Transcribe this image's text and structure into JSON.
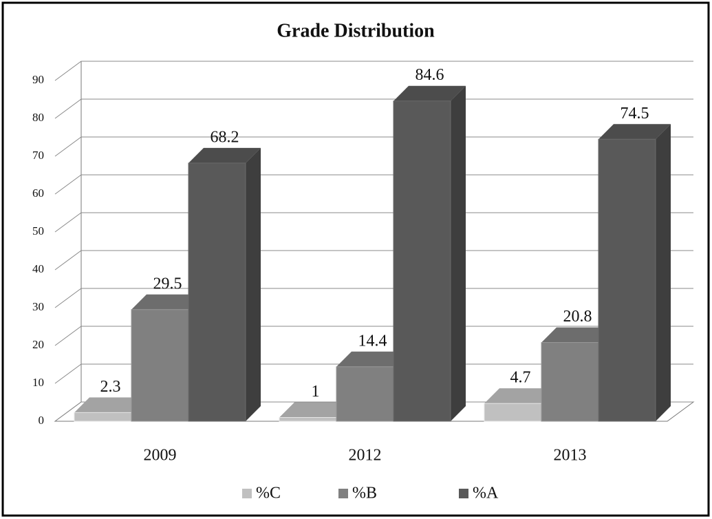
{
  "chart_data": {
    "type": "bar3d",
    "title": "Grade Distribution",
    "categories": [
      "2009",
      "2012",
      "2013"
    ],
    "series": [
      {
        "name": "%C",
        "color": "#c0c0c0",
        "values": [
          2.3,
          1,
          4.7
        ]
      },
      {
        "name": "%B",
        "color": "#808080",
        "values": [
          29.5,
          14.4,
          20.8
        ]
      },
      {
        "name": "%A",
        "color": "#595959",
        "values": [
          68.2,
          84.6,
          74.5
        ]
      }
    ],
    "ylim": [
      0,
      90
    ],
    "yticks": [
      0,
      10,
      20,
      30,
      40,
      50,
      60,
      70,
      80,
      90
    ],
    "grid": true,
    "legend": "bottom"
  }
}
